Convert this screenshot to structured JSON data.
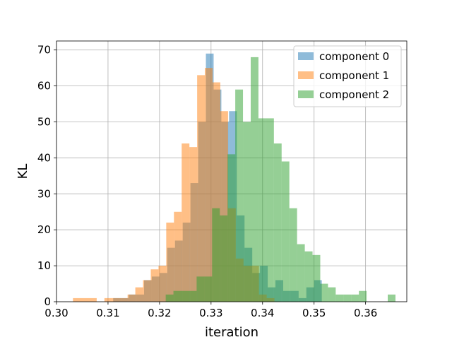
{
  "chart_data": {
    "type": "histogram",
    "xlabel": "iteration",
    "ylabel": "KL",
    "xlim": [
      0.3,
      0.368
    ],
    "ylim": [
      0,
      72.5
    ],
    "x_ticks": [
      0.3,
      0.31,
      0.32,
      0.33,
      0.34,
      0.35,
      0.36
    ],
    "x_tick_labels": [
      "0.30",
      "0.31",
      "0.32",
      "0.33",
      "0.34",
      "0.35",
      "0.36"
    ],
    "y_ticks": [
      0,
      10,
      20,
      30,
      40,
      50,
      60,
      70
    ],
    "y_tick_labels": [
      "0",
      "10",
      "20",
      "30",
      "40",
      "50",
      "60",
      "70"
    ],
    "grid": true,
    "legend_position": "top-right",
    "series": [
      {
        "name": "component 0",
        "color": "#1f77b4",
        "alpha": 0.5,
        "bins": [
          [
            0.311,
            0.3125,
            1
          ],
          [
            0.3125,
            0.314,
            1
          ],
          [
            0.314,
            0.3155,
            2
          ],
          [
            0.3155,
            0.317,
            2
          ],
          [
            0.317,
            0.3185,
            6
          ],
          [
            0.3185,
            0.32,
            7
          ],
          [
            0.32,
            0.3215,
            8
          ],
          [
            0.3215,
            0.323,
            15
          ],
          [
            0.323,
            0.3245,
            17
          ],
          [
            0.3245,
            0.326,
            22
          ],
          [
            0.326,
            0.3275,
            33
          ],
          [
            0.3275,
            0.329,
            50
          ],
          [
            0.329,
            0.3305,
            69
          ],
          [
            0.3305,
            0.332,
            59
          ],
          [
            0.332,
            0.3335,
            50
          ],
          [
            0.3335,
            0.335,
            53
          ],
          [
            0.335,
            0.3365,
            24
          ],
          [
            0.3365,
            0.338,
            15
          ],
          [
            0.338,
            0.3395,
            8
          ],
          [
            0.3395,
            0.341,
            10
          ],
          [
            0.341,
            0.3425,
            4
          ],
          [
            0.3425,
            0.344,
            6
          ],
          [
            0.344,
            0.3455,
            3
          ],
          [
            0.3455,
            0.347,
            3
          ],
          [
            0.347,
            0.3485,
            1
          ],
          [
            0.3485,
            0.35,
            4
          ],
          [
            0.35,
            0.3515,
            6
          ]
        ]
      },
      {
        "name": "component 1",
        "color": "#ff7f0e",
        "alpha": 0.5,
        "bins": [
          [
            0.3032,
            0.3078,
            1
          ],
          [
            0.3093,
            0.3108,
            1
          ],
          [
            0.3108,
            0.3123,
            1
          ],
          [
            0.3123,
            0.3138,
            1
          ],
          [
            0.3138,
            0.3153,
            2
          ],
          [
            0.3153,
            0.3168,
            4
          ],
          [
            0.3168,
            0.3183,
            6
          ],
          [
            0.3183,
            0.3198,
            9
          ],
          [
            0.3198,
            0.3213,
            10
          ],
          [
            0.3213,
            0.3228,
            22
          ],
          [
            0.3228,
            0.3243,
            25
          ],
          [
            0.3243,
            0.3258,
            44
          ],
          [
            0.3258,
            0.3273,
            43
          ],
          [
            0.3273,
            0.3288,
            63
          ],
          [
            0.3288,
            0.3303,
            65
          ],
          [
            0.3303,
            0.3318,
            61
          ],
          [
            0.3318,
            0.3333,
            53
          ],
          [
            0.3333,
            0.3348,
            26
          ],
          [
            0.3348,
            0.3363,
            12
          ],
          [
            0.3363,
            0.3378,
            10
          ],
          [
            0.3378,
            0.3393,
            10
          ],
          [
            0.3393,
            0.3408,
            2
          ],
          [
            0.3408,
            0.3423,
            1
          ]
        ]
      },
      {
        "name": "component 2",
        "color": "#2ca02c",
        "alpha": 0.5,
        "bins": [
          [
            0.3212,
            0.3227,
            2
          ],
          [
            0.3227,
            0.3242,
            3
          ],
          [
            0.3242,
            0.3257,
            3
          ],
          [
            0.3257,
            0.3272,
            3
          ],
          [
            0.3272,
            0.3287,
            7
          ],
          [
            0.3287,
            0.3302,
            7
          ],
          [
            0.3302,
            0.3317,
            26
          ],
          [
            0.3317,
            0.3332,
            24
          ],
          [
            0.3332,
            0.3347,
            41
          ],
          [
            0.3347,
            0.3362,
            59
          ],
          [
            0.3362,
            0.3377,
            50
          ],
          [
            0.3377,
            0.3392,
            68
          ],
          [
            0.3392,
            0.3407,
            51
          ],
          [
            0.3407,
            0.3422,
            51
          ],
          [
            0.3422,
            0.3437,
            44
          ],
          [
            0.3437,
            0.3452,
            39
          ],
          [
            0.3452,
            0.3467,
            26
          ],
          [
            0.3467,
            0.3482,
            16
          ],
          [
            0.3482,
            0.3497,
            14
          ],
          [
            0.3497,
            0.3512,
            13
          ],
          [
            0.3512,
            0.3527,
            5
          ],
          [
            0.3527,
            0.3542,
            4
          ],
          [
            0.3542,
            0.3557,
            2
          ],
          [
            0.3557,
            0.3572,
            2
          ],
          [
            0.3572,
            0.3587,
            2
          ],
          [
            0.3587,
            0.3602,
            3
          ],
          [
            0.3643,
            0.3658,
            2
          ]
        ]
      }
    ]
  }
}
